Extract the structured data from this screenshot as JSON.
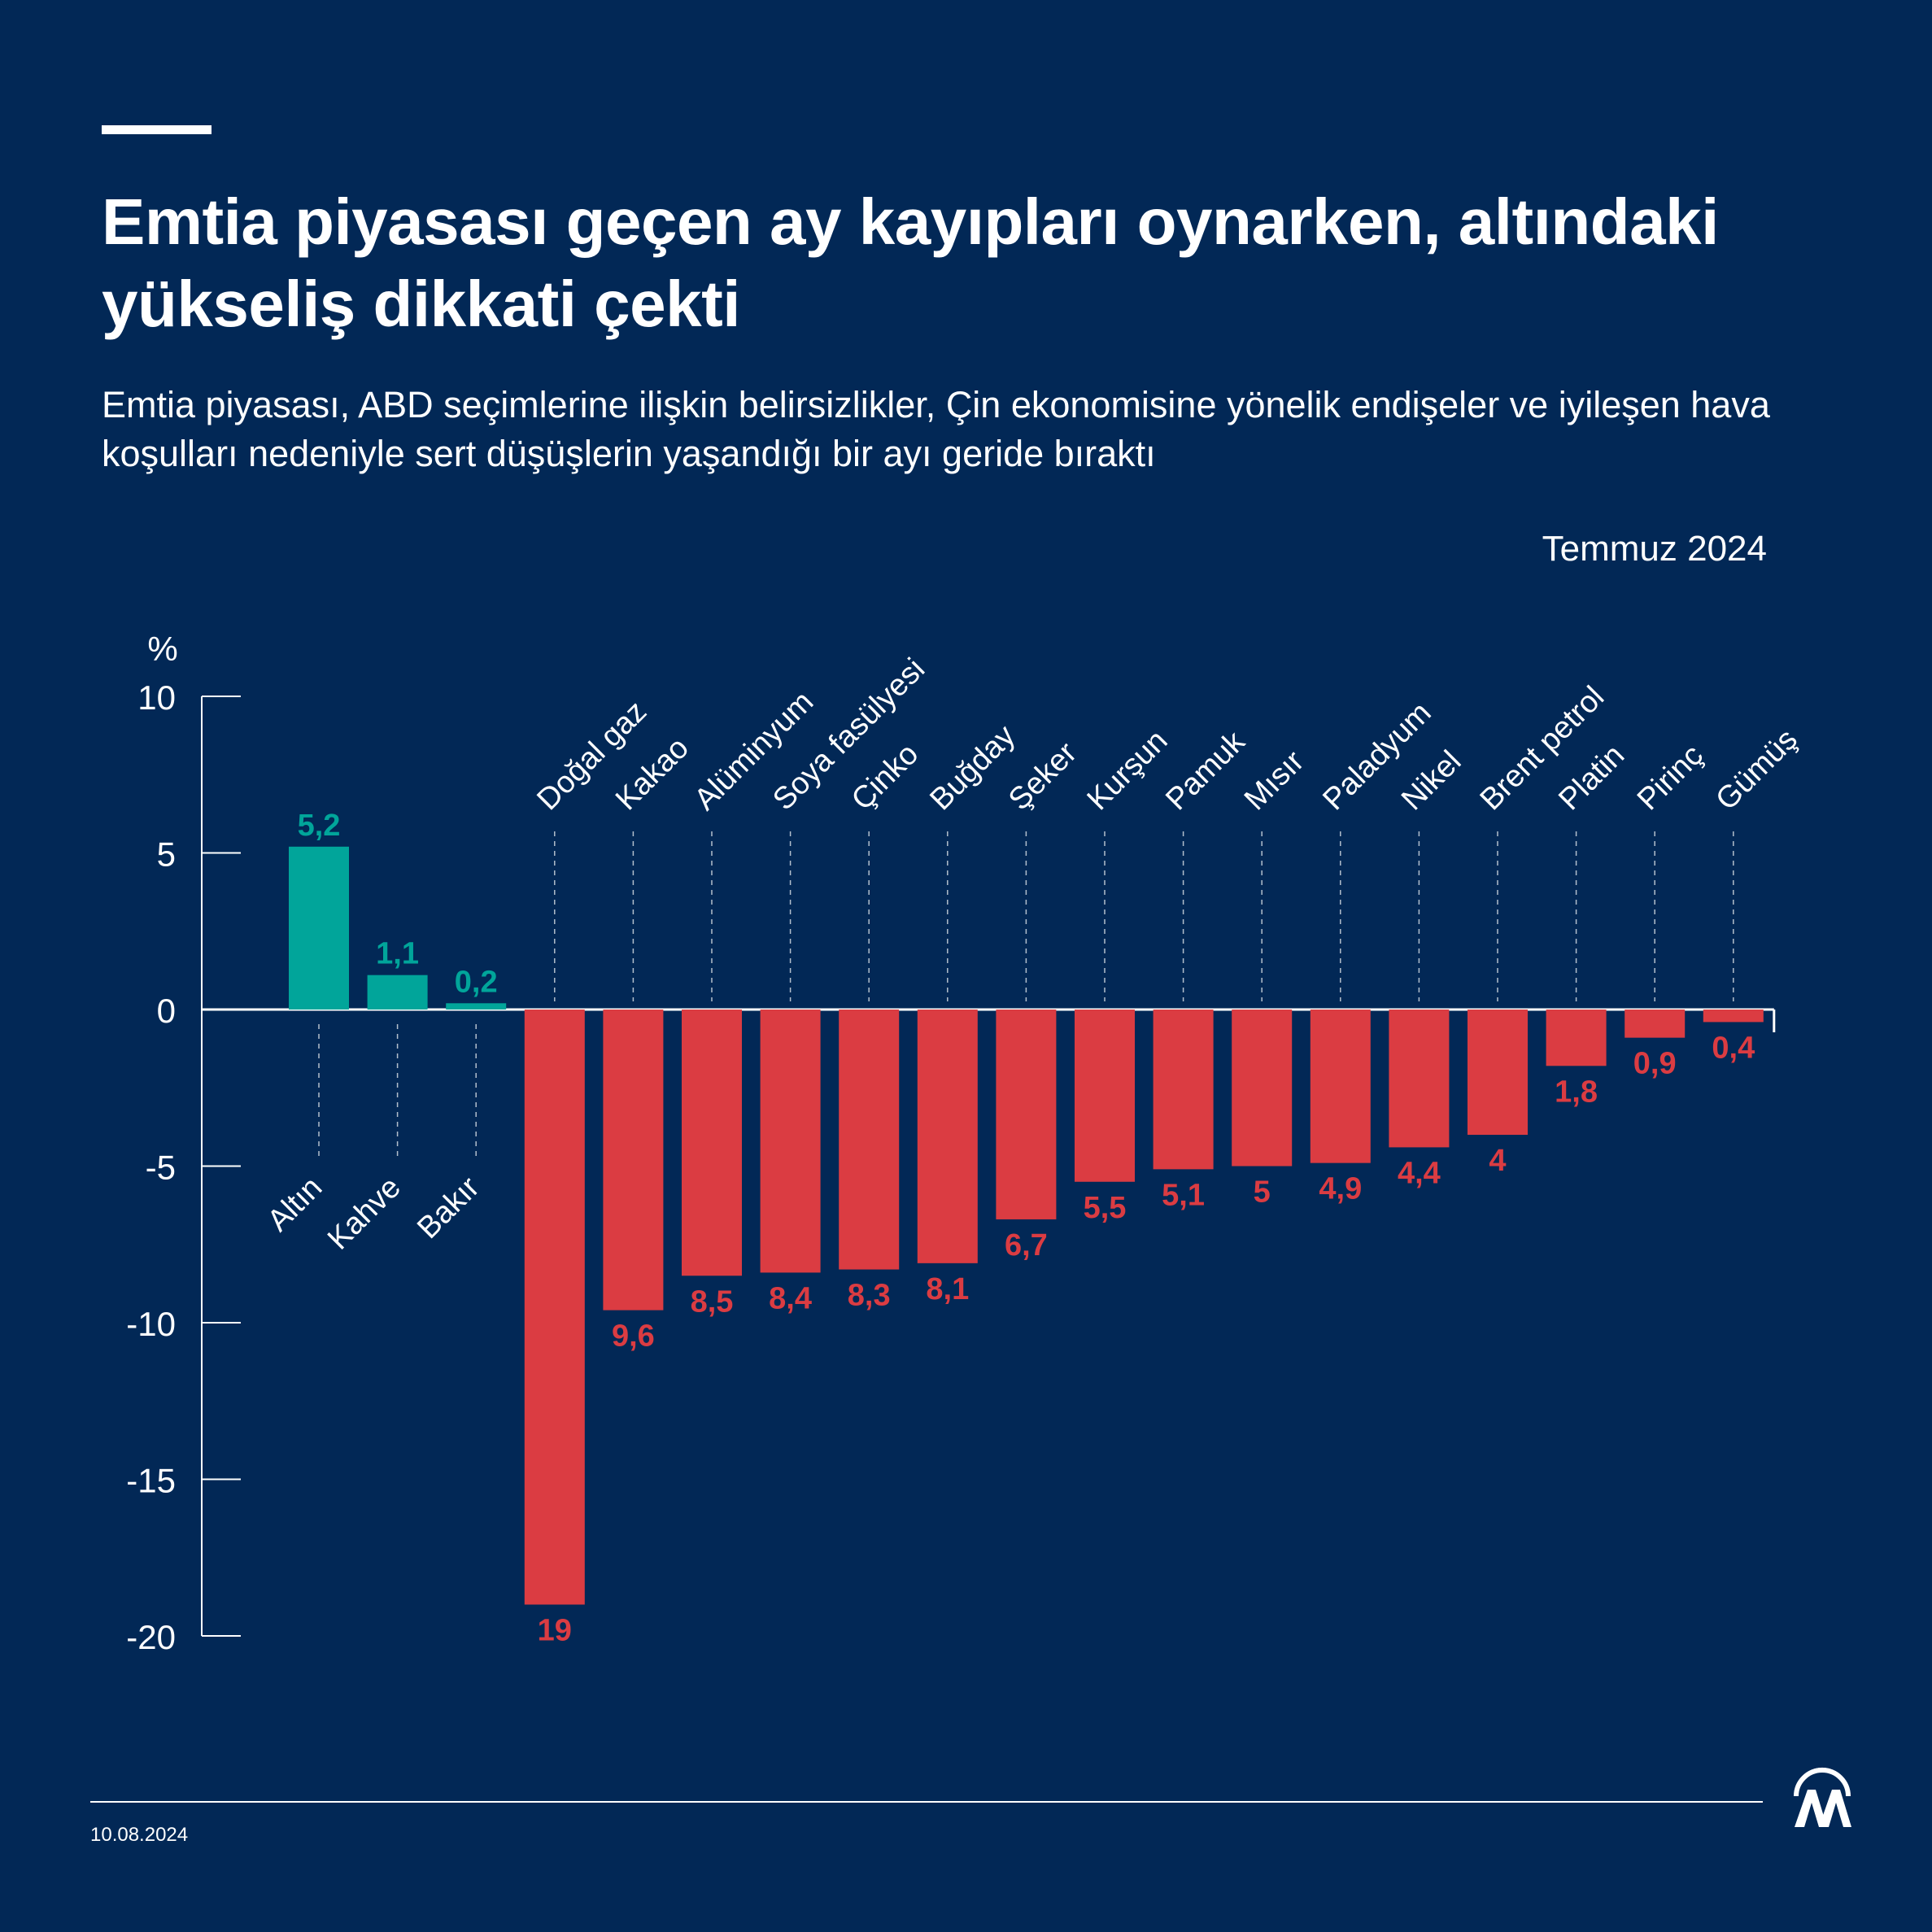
{
  "header": {
    "title": "Emtia piyasası geçen ay kayıpları oynarken, altındaki yükseliş dikkati çekti",
    "subtitle": "Emtia piyasası, ABD seçimlerine ilişkin belirsizlikler, Çin ekonomisine yönelik endişeler ve iyileşen hava koşulları nedeniyle sert düşüşlerin yaşandığı bir ayı geride bıraktı",
    "period": "Temmuz 2024"
  },
  "footer": {
    "date": "10.08.2024",
    "logo_icon": "aa-logo-icon"
  },
  "colors": {
    "background": "#022856",
    "positive": "#01a59a",
    "negative": "#db3c42",
    "text": "#ffffff"
  },
  "chart_data": {
    "type": "bar",
    "ylabel": "%",
    "ylim": [
      -20,
      10
    ],
    "yticks": [
      10,
      5,
      0,
      -5,
      -10,
      -15,
      -20
    ],
    "categories": [
      "Altın",
      "Kahve",
      "Bakır",
      "Doğal gaz",
      "Kakao",
      "Alüminyum",
      "Soya fasülyesi",
      "Çinko",
      "Buğday",
      "Şeker",
      "Kurşun",
      "Pamuk",
      "Mısır",
      "Paladyum",
      "Nikel",
      "Brent petrol",
      "Platin",
      "Pirinç",
      "Gümüş"
    ],
    "values": [
      5.2,
      1.1,
      0.2,
      -19,
      -9.6,
      -8.5,
      -8.4,
      -8.3,
      -8.1,
      -6.7,
      -5.5,
      -5.1,
      -5,
      -4.9,
      -4.4,
      -4,
      -1.8,
      -0.9,
      -0.4
    ],
    "data_labels": [
      "5,2",
      "1,1",
      "0,2",
      "19",
      "9,6",
      "8,5",
      "8,4",
      "8,3",
      "8,1",
      "6,7",
      "5,5",
      "5,1",
      "5",
      "4,9",
      "4,4",
      "4",
      "1,8",
      "0,9",
      "0,4"
    ],
    "grid": false,
    "legend": "none"
  }
}
